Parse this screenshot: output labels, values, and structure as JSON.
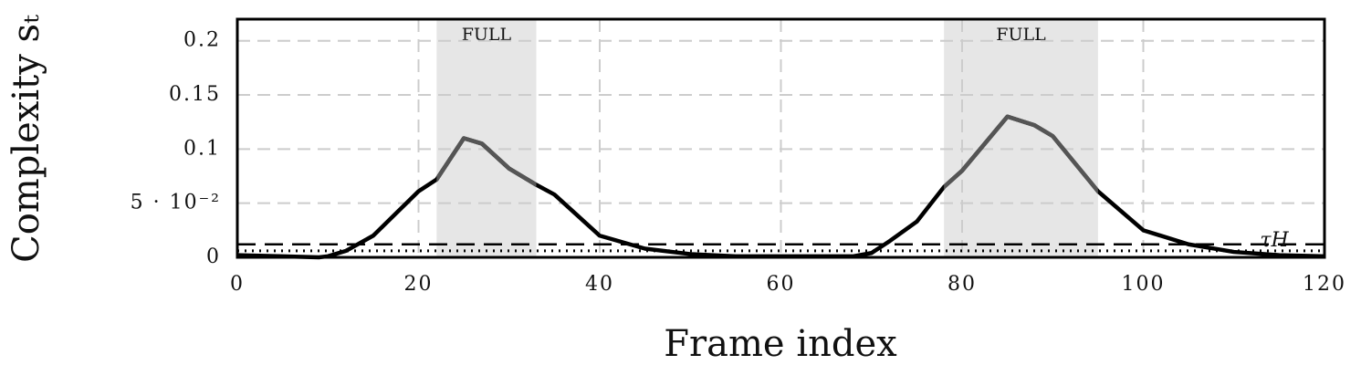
{
  "chart_data": {
    "type": "line",
    "xlabel": "Frame index",
    "ylabel": "Complexity sₜ",
    "x": [
      0,
      5,
      9,
      10,
      12,
      15,
      20,
      22,
      25,
      27,
      30,
      33,
      35,
      40,
      45,
      50,
      55,
      60,
      65,
      68,
      70,
      72,
      75,
      78,
      80,
      85,
      88,
      90,
      95,
      100,
      105,
      110,
      115,
      120
    ],
    "series": [
      {
        "name": "Complexity",
        "color": "#000000",
        "highlight_color": "#555555",
        "values": [
          0.002,
          0.001,
          0,
          0.001,
          0.006,
          0.02,
          0.061,
          0.072,
          0.11,
          0.105,
          0.082,
          0.067,
          0.058,
          0.02,
          0.008,
          0.003,
          0.001,
          0.001,
          0.001,
          0.001,
          0.004,
          0.015,
          0.033,
          0.065,
          0.08,
          0.13,
          0.122,
          0.112,
          0.061,
          0.025,
          0.012,
          0.005,
          0.002,
          0.001
        ]
      }
    ],
    "regions": [
      {
        "start": 22,
        "end": 33,
        "label": "FULL"
      },
      {
        "start": 78,
        "end": 95,
        "label": "FULL"
      }
    ],
    "thresholds": [
      {
        "value": 0.012,
        "style": "dashed",
        "label": "τH"
      },
      {
        "value": 0.006,
        "style": "dotted"
      }
    ],
    "xlim": [
      0,
      120
    ],
    "xticks": [
      0,
      20,
      40,
      60,
      80,
      100,
      120
    ],
    "ylim": [
      0,
      0.22
    ],
    "yticks": [
      0,
      {
        "value": 0.05,
        "label": "5 · 10⁻²"
      },
      0.1,
      0.15,
      0.2
    ],
    "grid": true
  }
}
